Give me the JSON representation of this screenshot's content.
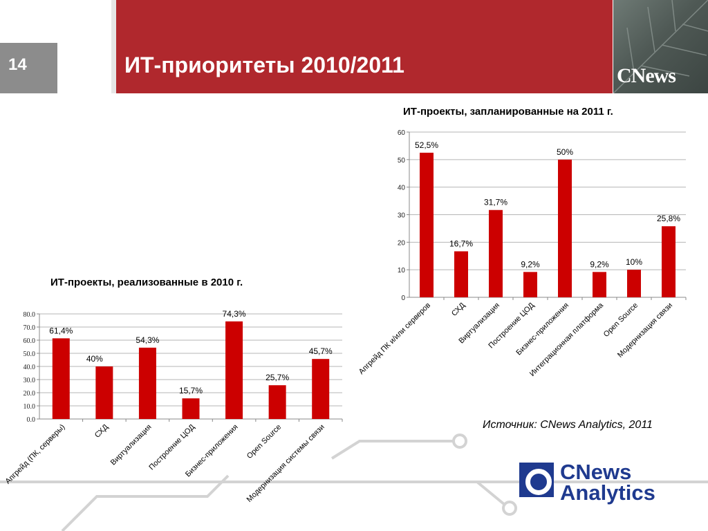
{
  "slide": {
    "number": "14",
    "title": "ИТ-приоритеты 2010/2011",
    "brand": "CNews",
    "source": "Источник: CNews Analytics, 2011"
  },
  "logo": {
    "line1": "CNews",
    "line2": "Analytics"
  },
  "colors": {
    "header": "#b0282d",
    "bar": "#cc0000",
    "logo": "#1f3a8f"
  },
  "chart_data": [
    {
      "id": "chart2011",
      "type": "bar",
      "title": "ИТ-проекты, запланированные на 2011 г.",
      "categories": [
        "Апгрейд ПК и/или серверов",
        "СХД",
        "Виртуализация",
        "Построение ЦОД",
        "Бизнес-приложения",
        "Интеграционная платформа",
        "Open Source",
        "Модернизация связи"
      ],
      "values": [
        52.5,
        16.7,
        31.7,
        9.2,
        50,
        9.2,
        10,
        25.8
      ],
      "labels": [
        "52,5%",
        "16,7%",
        "31,7%",
        "9,2%",
        "50%",
        "9,2%",
        "10%",
        "25,8%"
      ],
      "ylim": [
        0,
        60
      ],
      "yticks": [
        "0",
        "10",
        "20",
        "30",
        "40",
        "50",
        "60"
      ],
      "grid": true,
      "legend": "none"
    },
    {
      "id": "chart2010",
      "type": "bar",
      "title": "ИТ-проекты, реализованные в 2010 г.",
      "categories": [
        "Апгрейд (ПК, серверы)",
        "СХД",
        "Виртуализация",
        "Построение ЦОД",
        "Бизнес-приложения",
        "Open Source",
        "Модернизация системы связи"
      ],
      "values": [
        61.4,
        40,
        54.3,
        15.7,
        74.3,
        25.7,
        45.7
      ],
      "labels": [
        "61,4%",
        "40%",
        "54,3%",
        "15,7%",
        "74,3%",
        "25,7%",
        "45,7%"
      ],
      "ylim": [
        0,
        80
      ],
      "yticks": [
        "0.0",
        "10.0",
        "20.0",
        "30.0",
        "40.0",
        "50.0",
        "60.0",
        "70.0",
        "80.0"
      ],
      "grid": true,
      "legend": "none"
    }
  ]
}
